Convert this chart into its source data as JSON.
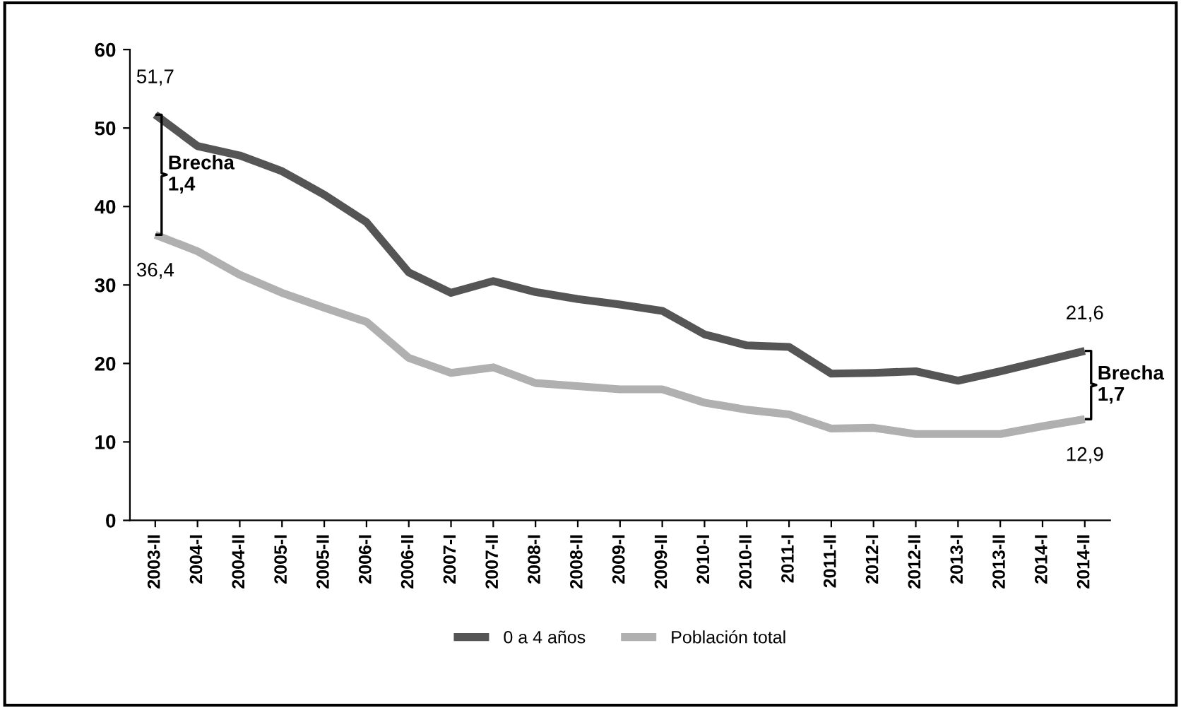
{
  "chart_data": {
    "type": "line",
    "categories": [
      "2003-II",
      "2004-I",
      "2004-II",
      "2005-I",
      "2005-II",
      "2006-I",
      "2006-II",
      "2007-I",
      "2007-II",
      "2008-I",
      "2008-II",
      "2009-I",
      "2009-II",
      "2010-I",
      "2010-II",
      "2011-I",
      "2011-II",
      "2012-I",
      "2012-II",
      "2013-I",
      "2013-II",
      "2014-I",
      "2014-II"
    ],
    "series": [
      {
        "name": "0 a 4 años",
        "color": "#555555",
        "values": [
          51.7,
          47.7,
          46.5,
          44.5,
          41.5,
          38.0,
          31.6,
          29.0,
          30.5,
          29.1,
          28.2,
          27.5,
          26.7,
          23.7,
          22.3,
          22.1,
          18.7,
          18.8,
          19.0,
          17.8,
          19.0,
          20.3,
          21.6
        ],
        "value_labels": [
          "51,7",
          null,
          null,
          null,
          null,
          null,
          null,
          null,
          null,
          null,
          null,
          null,
          null,
          null,
          null,
          null,
          null,
          null,
          null,
          null,
          null,
          null,
          "21,6"
        ]
      },
      {
        "name": "Población total",
        "color": "#b0b0b0",
        "values": [
          36.4,
          34.3,
          31.3,
          29.0,
          27.1,
          25.3,
          20.7,
          18.8,
          19.5,
          17.5,
          17.1,
          16.7,
          16.7,
          15.0,
          14.1,
          13.5,
          11.7,
          11.8,
          11.0,
          11.0,
          11.0,
          12.0,
          12.9
        ],
        "value_labels": [
          "36,4",
          null,
          null,
          null,
          null,
          null,
          null,
          null,
          null,
          null,
          null,
          null,
          null,
          null,
          null,
          null,
          null,
          null,
          null,
          null,
          null,
          null,
          "12,9"
        ]
      }
    ],
    "ylim": [
      0,
      60
    ],
    "yticks": [
      0,
      10,
      20,
      30,
      40,
      50,
      60
    ],
    "annotations": [
      {
        "text": "Brecha\n1,4",
        "x": "2003-II",
        "y": 51.7
      },
      {
        "text": "Brecha\n1,7",
        "x": "2014-II",
        "y": 21.6
      }
    ],
    "legend": "bottom",
    "grid": false,
    "marker": "none",
    "line_style": "solid"
  }
}
